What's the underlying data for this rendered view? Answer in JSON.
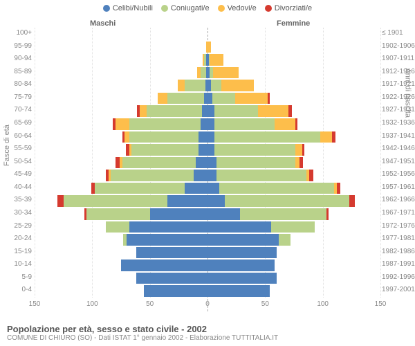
{
  "type": "population-pyramid",
  "legend": [
    {
      "label": "Celibi/Nubili",
      "color": "#4f81bd"
    },
    {
      "label": "Coniugati/e",
      "color": "#b9d28a"
    },
    {
      "label": "Vedovi/e",
      "color": "#fdbe4b"
    },
    {
      "label": "Divorziati/e",
      "color": "#d53a2f"
    }
  ],
  "header_male": "Maschi",
  "header_female": "Femmine",
  "y_title_left": "Fasce di età",
  "y_title_right": "Anni di nascita",
  "footer_title": "Popolazione per età, sesso e stato civile - 2002",
  "footer_sub": "COMUNE DI CHIURO (SO) - Dati ISTAT 1° gennaio 2002 - Elaborazione TUTTITALIA.IT",
  "axis_max": 150,
  "x_ticks": [
    150,
    100,
    50,
    0,
    50,
    100,
    150
  ],
  "colors": {
    "single": "#4f81bd",
    "married": "#b9d28a",
    "widowed": "#fdbe4b",
    "divorced": "#d53a2f",
    "grid": "#e0e0e0",
    "text": "#888888",
    "bg": "#ffffff"
  },
  "label_fontsize": 10,
  "title_fontsize": 13,
  "rows": [
    {
      "age": "100+",
      "birth": "≤ 1901",
      "m": {
        "s": 0,
        "c": 0,
        "w": 0,
        "d": 0
      },
      "f": {
        "s": 0,
        "c": 0,
        "w": 0,
        "d": 0
      }
    },
    {
      "age": "95-99",
      "birth": "1902-1906",
      "m": {
        "s": 0,
        "c": 0,
        "w": 1,
        "d": 0
      },
      "f": {
        "s": 0,
        "c": 0,
        "w": 3,
        "d": 0
      }
    },
    {
      "age": "90-94",
      "birth": "1907-1911",
      "m": {
        "s": 1,
        "c": 2,
        "w": 1,
        "d": 0
      },
      "f": {
        "s": 1,
        "c": 1,
        "w": 12,
        "d": 0
      }
    },
    {
      "age": "85-89",
      "birth": "1912-1916",
      "m": {
        "s": 1,
        "c": 5,
        "w": 3,
        "d": 0
      },
      "f": {
        "s": 2,
        "c": 3,
        "w": 22,
        "d": 0
      }
    },
    {
      "age": "80-84",
      "birth": "1917-1921",
      "m": {
        "s": 2,
        "c": 18,
        "w": 6,
        "d": 0
      },
      "f": {
        "s": 3,
        "c": 9,
        "w": 28,
        "d": 0
      }
    },
    {
      "age": "75-79",
      "birth": "1922-1926",
      "m": {
        "s": 3,
        "c": 32,
        "w": 8,
        "d": 0
      },
      "f": {
        "s": 4,
        "c": 20,
        "w": 28,
        "d": 2
      }
    },
    {
      "age": "70-74",
      "birth": "1927-1931",
      "m": {
        "s": 5,
        "c": 48,
        "w": 6,
        "d": 2
      },
      "f": {
        "s": 6,
        "c": 38,
        "w": 26,
        "d": 3
      }
    },
    {
      "age": "65-69",
      "birth": "1932-1936",
      "m": {
        "s": 6,
        "c": 62,
        "w": 12,
        "d": 2
      },
      "f": {
        "s": 6,
        "c": 52,
        "w": 18,
        "d": 2
      }
    },
    {
      "age": "60-64",
      "birth": "1937-1941",
      "m": {
        "s": 8,
        "c": 60,
        "w": 4,
        "d": 2
      },
      "f": {
        "s": 6,
        "c": 92,
        "w": 10,
        "d": 3
      }
    },
    {
      "age": "55-59",
      "birth": "1942-1946",
      "m": {
        "s": 8,
        "c": 58,
        "w": 2,
        "d": 3
      },
      "f": {
        "s": 6,
        "c": 70,
        "w": 6,
        "d": 2
      }
    },
    {
      "age": "50-54",
      "birth": "1947-1951",
      "m": {
        "s": 10,
        "c": 64,
        "w": 2,
        "d": 4
      },
      "f": {
        "s": 8,
        "c": 68,
        "w": 4,
        "d": 3
      }
    },
    {
      "age": "45-49",
      "birth": "1952-1956",
      "m": {
        "s": 12,
        "c": 72,
        "w": 2,
        "d": 2
      },
      "f": {
        "s": 8,
        "c": 78,
        "w": 2,
        "d": 4
      }
    },
    {
      "age": "40-44",
      "birth": "1957-1961",
      "m": {
        "s": 20,
        "c": 78,
        "w": 0,
        "d": 3
      },
      "f": {
        "s": 10,
        "c": 100,
        "w": 2,
        "d": 3
      }
    },
    {
      "age": "35-39",
      "birth": "1962-1966",
      "m": {
        "s": 35,
        "c": 90,
        "w": 0,
        "d": 5
      },
      "f": {
        "s": 15,
        "c": 108,
        "w": 0,
        "d": 5
      }
    },
    {
      "age": "30-34",
      "birth": "1967-1971",
      "m": {
        "s": 50,
        "c": 55,
        "w": 0,
        "d": 2
      },
      "f": {
        "s": 28,
        "c": 75,
        "w": 0,
        "d": 2
      }
    },
    {
      "age": "25-29",
      "birth": "1972-1976",
      "m": {
        "s": 68,
        "c": 20,
        "w": 0,
        "d": 0
      },
      "f": {
        "s": 55,
        "c": 38,
        "w": 0,
        "d": 0
      }
    },
    {
      "age": "20-24",
      "birth": "1977-1981",
      "m": {
        "s": 70,
        "c": 3,
        "w": 0,
        "d": 0
      },
      "f": {
        "s": 62,
        "c": 10,
        "w": 0,
        "d": 0
      }
    },
    {
      "age": "15-19",
      "birth": "1982-1986",
      "m": {
        "s": 62,
        "c": 0,
        "w": 0,
        "d": 0
      },
      "f": {
        "s": 60,
        "c": 0,
        "w": 0,
        "d": 0
      }
    },
    {
      "age": "10-14",
      "birth": "1987-1991",
      "m": {
        "s": 75,
        "c": 0,
        "w": 0,
        "d": 0
      },
      "f": {
        "s": 58,
        "c": 0,
        "w": 0,
        "d": 0
      }
    },
    {
      "age": "5-9",
      "birth": "1992-1996",
      "m": {
        "s": 62,
        "c": 0,
        "w": 0,
        "d": 0
      },
      "f": {
        "s": 60,
        "c": 0,
        "w": 0,
        "d": 0
      }
    },
    {
      "age": "0-4",
      "birth": "1997-2001",
      "m": {
        "s": 55,
        "c": 0,
        "w": 0,
        "d": 0
      },
      "f": {
        "s": 54,
        "c": 0,
        "w": 0,
        "d": 0
      }
    }
  ]
}
